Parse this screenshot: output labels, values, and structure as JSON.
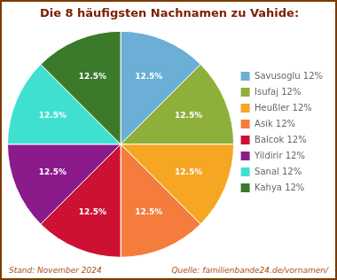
{
  "chart_data": {
    "type": "pie",
    "title": "Die 8 häufigsten Nachnamen zu Vahide:",
    "categories": [
      "Savusoglu 12%",
      "Isufaj 12%",
      "Heußler 12%",
      "Asik 12%",
      "Balcok 12%",
      "Yildirir 12%",
      "Sanal 12%",
      "Kahya 12%"
    ],
    "values": [
      12.5,
      12.5,
      12.5,
      12.5,
      12.5,
      12.5,
      12.5,
      12.5
    ],
    "value_labels": [
      "12.5%",
      "12.5%",
      "12.5%",
      "12.5%",
      "12.5%",
      "12.5%",
      "12.5%",
      "12.5%"
    ],
    "data_labels": true,
    "colors": [
      "#6baed6",
      "#8db03a",
      "#f5a623",
      "#f47c3c",
      "#cc1133",
      "#8b1a8b",
      "#40e0d0",
      "#3a7a2a"
    ],
    "legend": "right",
    "annotations": [
      "Stand: November 2024",
      "Quelle: familienbande24.de/vornamen/"
    ]
  }
}
